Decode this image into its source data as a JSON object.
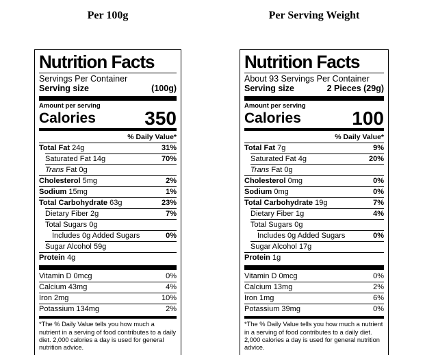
{
  "page": {
    "background_color": "#ffffff",
    "text_color": "#000000"
  },
  "labels": [
    {
      "heading": "Per 100g",
      "title": "Nutrition Facts",
      "servings_per_container": "Servings Per Container",
      "serving_size_label": "Serving size",
      "serving_size_value": "(100g)",
      "amount_per_serving": "Amount per serving",
      "calories_label": "Calories",
      "calories_value": "350",
      "daily_value_header": "% Daily Value*",
      "rows": [
        {
          "name": "Total Fat",
          "amount": "24g",
          "dv": "31%",
          "bold": true,
          "indent": 0,
          "dv_bold": true
        },
        {
          "name": "Saturated Fat",
          "amount": "14g",
          "dv": "70%",
          "indent": 1,
          "dv_bold": true
        },
        {
          "name": "Fat",
          "italic_prefix": "Trans",
          "amount": "0g",
          "dv": "",
          "indent": 1
        },
        {
          "name": "Cholesterol",
          "amount": "5mg",
          "dv": "2%",
          "bold": true,
          "indent": 0,
          "dv_bold": true
        },
        {
          "name": "Sodium",
          "amount": "15mg",
          "dv": "1%",
          "bold": true,
          "indent": 0,
          "dv_bold": true
        },
        {
          "name": "Total Carbohydrate",
          "amount": "63g",
          "dv": "23%",
          "bold": true,
          "indent": 0,
          "dv_bold": true
        },
        {
          "name": "Dietary Fiber",
          "amount": "2g",
          "dv": "7%",
          "indent": 1,
          "dv_bold": true
        },
        {
          "name": "Total Sugars",
          "amount": "0g",
          "dv": "",
          "indent": 1
        },
        {
          "name": "Includes 0g Added Sugars",
          "amount": "",
          "dv": "0%",
          "indent": 2,
          "dv_bold": true
        },
        {
          "name": "Sugar Alcohol",
          "amount": "59g",
          "dv": "",
          "indent": 1
        },
        {
          "name": "Protein",
          "amount": "4g",
          "dv": "",
          "bold": true,
          "indent": 0
        }
      ],
      "vitamins": [
        {
          "name": "Vitamin D",
          "amount": "0mcg",
          "dv": "0%",
          "indent": 0
        },
        {
          "name": "Calcium",
          "amount": "43mg",
          "dv": "4%",
          "indent": 0
        },
        {
          "name": "Iron",
          "amount": "2mg",
          "dv": "10%",
          "indent": 0
        },
        {
          "name": "Potassium",
          "amount": "134mg",
          "dv": "2%",
          "indent": 0
        }
      ],
      "footnote": "*The % Daily Value tells you how much a nutrient in a serving of food contributes to a daily diet. 2,000 calories a day is used for general nutrition advice."
    },
    {
      "heading": "Per Serving Weight",
      "title": "Nutrition Facts",
      "servings_per_container": "About 93 Servings Per Container",
      "serving_size_label": "Serving size",
      "serving_size_value": "2 Pieces (29g)",
      "amount_per_serving": "Amount per serving",
      "calories_label": "Calories",
      "calories_value": "100",
      "daily_value_header": "% Daily Value*",
      "rows": [
        {
          "name": "Total Fat",
          "amount": "7g",
          "dv": "9%",
          "bold": true,
          "indent": 0,
          "dv_bold": true
        },
        {
          "name": "Saturated Fat",
          "amount": "4g",
          "dv": "20%",
          "indent": 1,
          "dv_bold": true
        },
        {
          "name": "Fat",
          "italic_prefix": "Trans",
          "amount": "0g",
          "dv": "",
          "indent": 1
        },
        {
          "name": "Cholesterol",
          "amount": "0mg",
          "dv": "0%",
          "bold": true,
          "indent": 0,
          "dv_bold": true
        },
        {
          "name": "Sodium",
          "amount": "0mg",
          "dv": "0%",
          "bold": true,
          "indent": 0,
          "dv_bold": true
        },
        {
          "name": "Total Carbohydrate",
          "amount": "19g",
          "dv": "7%",
          "bold": true,
          "indent": 0,
          "dv_bold": true
        },
        {
          "name": "Dietary Fiber",
          "amount": "1g",
          "dv": "4%",
          "indent": 1,
          "dv_bold": true
        },
        {
          "name": "Total Sugars",
          "amount": "0g",
          "dv": "",
          "indent": 1
        },
        {
          "name": "Includes 0g Added Sugars",
          "amount": "",
          "dv": "0%",
          "indent": 2,
          "dv_bold": true
        },
        {
          "name": "Sugar Alcohol",
          "amount": "17g",
          "dv": "",
          "indent": 1
        },
        {
          "name": "Protein",
          "amount": "1g",
          "dv": "",
          "bold": true,
          "indent": 0
        }
      ],
      "vitamins": [
        {
          "name": "Vitamin D",
          "amount": "0mcg",
          "dv": "0%",
          "indent": 0
        },
        {
          "name": "Calcium",
          "amount": "13mg",
          "dv": "2%",
          "indent": 0
        },
        {
          "name": "Iron",
          "amount": "1mg",
          "dv": "6%",
          "indent": 0
        },
        {
          "name": "Potassium",
          "amount": "39mg",
          "dv": "0%",
          "indent": 0
        }
      ],
      "footnote": "*The % Daily Value tells you how much a nutrient in a serving of food contributes to a daily diet. 2,000 calories a day is used for general nutrition advice."
    }
  ]
}
